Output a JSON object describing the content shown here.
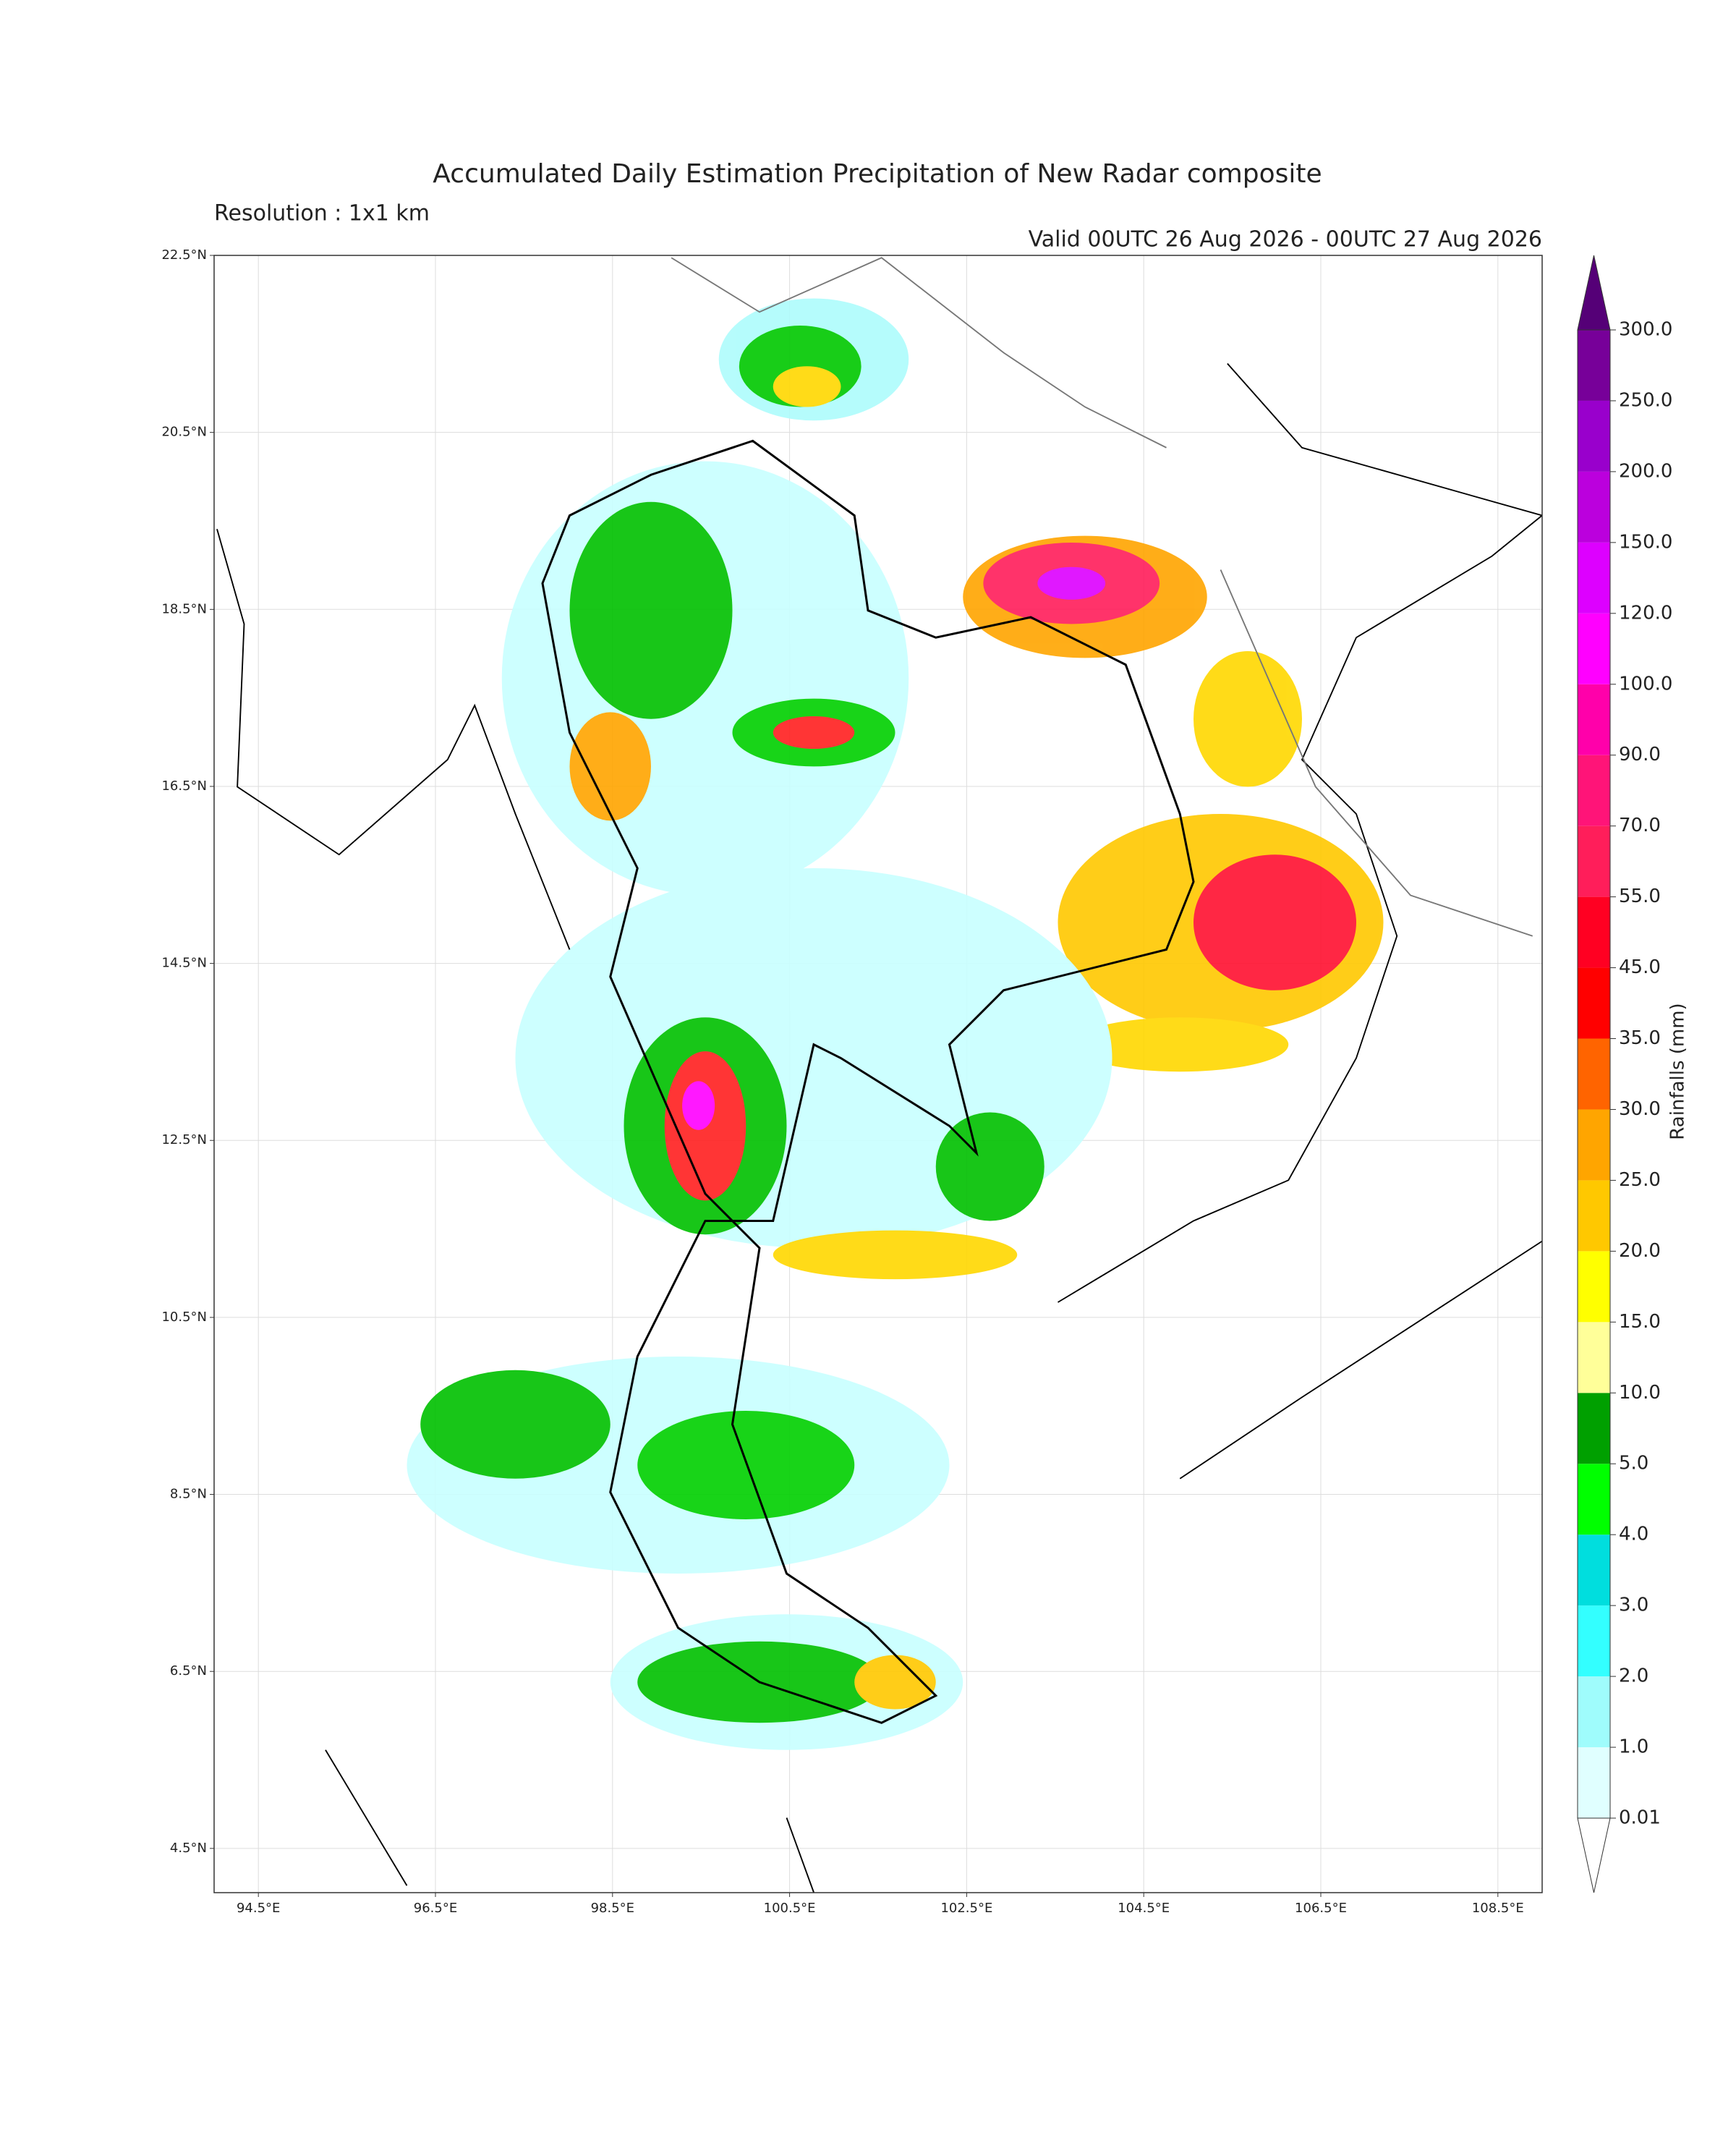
{
  "header": {
    "title": "Accumulated Daily Estimation Precipitation of New Radar composite",
    "resolution": "Resolution : 1x1 km",
    "valid": "Valid 00UTC 26 Aug 2026 - 00UTC 27 Aug 2026"
  },
  "map": {
    "lon_range": [
      94,
      109
    ],
    "lat_range": [
      4,
      22.5
    ],
    "grid": true,
    "lon_ticks": [
      {
        "value": 94.5,
        "label": "94.5°E"
      },
      {
        "value": 96.5,
        "label": "96.5°E"
      },
      {
        "value": 98.5,
        "label": "98.5°E"
      },
      {
        "value": 100.5,
        "label": "100.5°E"
      },
      {
        "value": 102.5,
        "label": "102.5°E"
      },
      {
        "value": 104.5,
        "label": "104.5°E"
      },
      {
        "value": 106.5,
        "label": "106.5°E"
      },
      {
        "value": 108.5,
        "label": "108.5°E"
      }
    ],
    "lat_ticks": [
      {
        "value": 22.5,
        "label": "22.5°N"
      },
      {
        "value": 20.5,
        "label": "20.5°N"
      },
      {
        "value": 18.5,
        "label": "18.5°N"
      },
      {
        "value": 16.5,
        "label": "16.5°N"
      },
      {
        "value": 14.5,
        "label": "14.5°N"
      },
      {
        "value": 12.5,
        "label": "12.5°N"
      },
      {
        "value": 10.5,
        "label": "10.5°N"
      },
      {
        "value": 8.5,
        "label": "8.5°N"
      },
      {
        "value": 6.5,
        "label": "6.5°N"
      },
      {
        "value": 4.5,
        "label": "4.5°N"
      }
    ]
  },
  "colorbar": {
    "label": "Rainfalls (mm)",
    "levels": [
      0.01,
      {
        "value": 1,
        "label": "1.0"
      },
      {
        "value": 2,
        "label": "2.0"
      },
      {
        "value": 3,
        "label": "3.0"
      },
      {
        "value": 4,
        "label": "4.0"
      },
      {
        "value": 5,
        "label": "5.0"
      },
      {
        "value": 10,
        "label": "10.0"
      },
      {
        "value": 15,
        "label": "15.0"
      },
      {
        "value": 20,
        "label": "20.0"
      },
      {
        "value": 25,
        "label": "25.0"
      },
      {
        "value": 30,
        "label": "30.0"
      },
      {
        "value": 35,
        "label": "35.0"
      },
      {
        "value": 45,
        "label": "45.0"
      },
      {
        "value": 55,
        "label": "55.0"
      },
      {
        "value": 70,
        "label": "70.0"
      },
      {
        "value": 90,
        "label": "90.0"
      },
      {
        "value": 100,
        "label": "100.0"
      },
      {
        "value": 120,
        "label": "120.0"
      },
      {
        "value": 150,
        "label": "150.0"
      },
      {
        "value": 200,
        "label": "200.0"
      },
      {
        "value": 250,
        "label": "250.0"
      },
      {
        "value": 300,
        "label": "300.0"
      }
    ],
    "colors": [
      "#e0ffff",
      "#9ffcfc",
      "#33ffff",
      "#00dede",
      "#00ff00",
      "#00a000",
      "#ffff99",
      "#ffff00",
      "#ffc800",
      "#ffa500",
      "#ff6400",
      "#ff0000",
      "#ff0022",
      "#ff1e5a",
      "#ff1478",
      "#ff00aa",
      "#ff00ff",
      "#dd00ff",
      "#bb00dd",
      "#9900cc",
      "#770099"
    ],
    "over_color": "#550077",
    "under_color": "#ffffff"
  }
}
